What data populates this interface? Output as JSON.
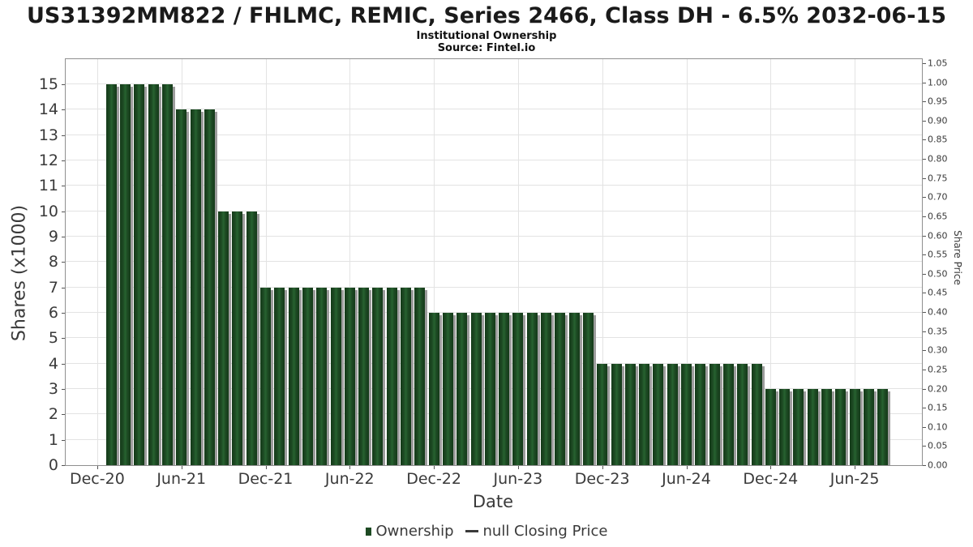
{
  "header": {
    "title": "US31392MM822 / FHLMC, REMIC, Series 2466, Class DH - 6.5% 2032-06-15",
    "subtitle": "Institutional Ownership",
    "source": "Source: Fintel.io"
  },
  "chart_data": {
    "type": "bar",
    "title": "US31392MM822 / FHLMC, REMIC, Series 2466, Class DH - 6.5% 2032-06-15",
    "subtitle": "Institutional Ownership",
    "source": "Source: Fintel.io",
    "xlabel": "Date",
    "ylabel_left": "Shares (x1000)",
    "ylabel_right": "Share Price",
    "ylim_left": [
      0,
      15
    ],
    "ylim_right": [
      0.0,
      1.05
    ],
    "grid": true,
    "legend_position": "bottom",
    "x": [
      "Jan-21",
      "Feb-21",
      "Mar-21",
      "Apr-21",
      "May-21",
      "Jun-21",
      "Jul-21",
      "Aug-21",
      "Sep-21",
      "Oct-21",
      "Nov-21",
      "Dec-21",
      "Jan-22",
      "Feb-22",
      "Mar-22",
      "Apr-22",
      "May-22",
      "Jun-22",
      "Jul-22",
      "Aug-22",
      "Sep-22",
      "Oct-22",
      "Nov-22",
      "Dec-22",
      "Jan-23",
      "Feb-23",
      "Mar-23",
      "Apr-23",
      "May-23",
      "Jun-23",
      "Jul-23",
      "Aug-23",
      "Sep-23",
      "Oct-23",
      "Nov-23",
      "Dec-23",
      "Jan-24",
      "Feb-24",
      "Mar-24",
      "Apr-24",
      "May-24",
      "Jun-24",
      "Jul-24",
      "Aug-24",
      "Sep-24",
      "Oct-24",
      "Nov-24",
      "Dec-24",
      "Jan-25",
      "Feb-25",
      "Mar-25",
      "Apr-25",
      "May-25",
      "Jun-25",
      "Jul-25",
      "Aug-25"
    ],
    "series": [
      {
        "name": "Ownership",
        "type": "bar",
        "color": "#1d4a23",
        "values": [
          15,
          15,
          15,
          15,
          15,
          14,
          14,
          14,
          10,
          10,
          10,
          7,
          7,
          7,
          7,
          7,
          7,
          7,
          7,
          7,
          7,
          7,
          7,
          6,
          6,
          6,
          6,
          6,
          6,
          6,
          6,
          6,
          6,
          6,
          6,
          4,
          4,
          4,
          4,
          4,
          4,
          4,
          4,
          4,
          4,
          4,
          4,
          3,
          3,
          3,
          3,
          3,
          3,
          3,
          3,
          3
        ]
      },
      {
        "name": "null Closing Price",
        "type": "line",
        "color": "#3a3a3a",
        "values": []
      }
    ],
    "x_tick_labels": [
      "Dec-20",
      "Jun-21",
      "Dec-21",
      "Jun-22",
      "Dec-22",
      "Jun-23",
      "Dec-23",
      "Jun-24",
      "Dec-24",
      "Jun-25"
    ],
    "left_tick_labels": [
      "0",
      "1",
      "2",
      "3",
      "4",
      "5",
      "6",
      "7",
      "8",
      "9",
      "10",
      "11",
      "12",
      "13",
      "14",
      "15"
    ],
    "right_tick_labels": [
      "0.00",
      "0.05",
      "0.10",
      "0.15",
      "0.20",
      "0.25",
      "0.30",
      "0.35",
      "0.40",
      "0.45",
      "0.50",
      "0.55",
      "0.60",
      "0.65",
      "0.70",
      "0.75",
      "0.80",
      "0.85",
      "0.90",
      "0.95",
      "1.00",
      "1.05"
    ]
  },
  "colors": {
    "bar": "#1d4a23",
    "bar_shadow": "#9c9c9c",
    "grid": "#e3e3e3",
    "plot_border": "#8f8f8f",
    "text": "#3a3a3a",
    "title_text": "#1a1a1a"
  }
}
